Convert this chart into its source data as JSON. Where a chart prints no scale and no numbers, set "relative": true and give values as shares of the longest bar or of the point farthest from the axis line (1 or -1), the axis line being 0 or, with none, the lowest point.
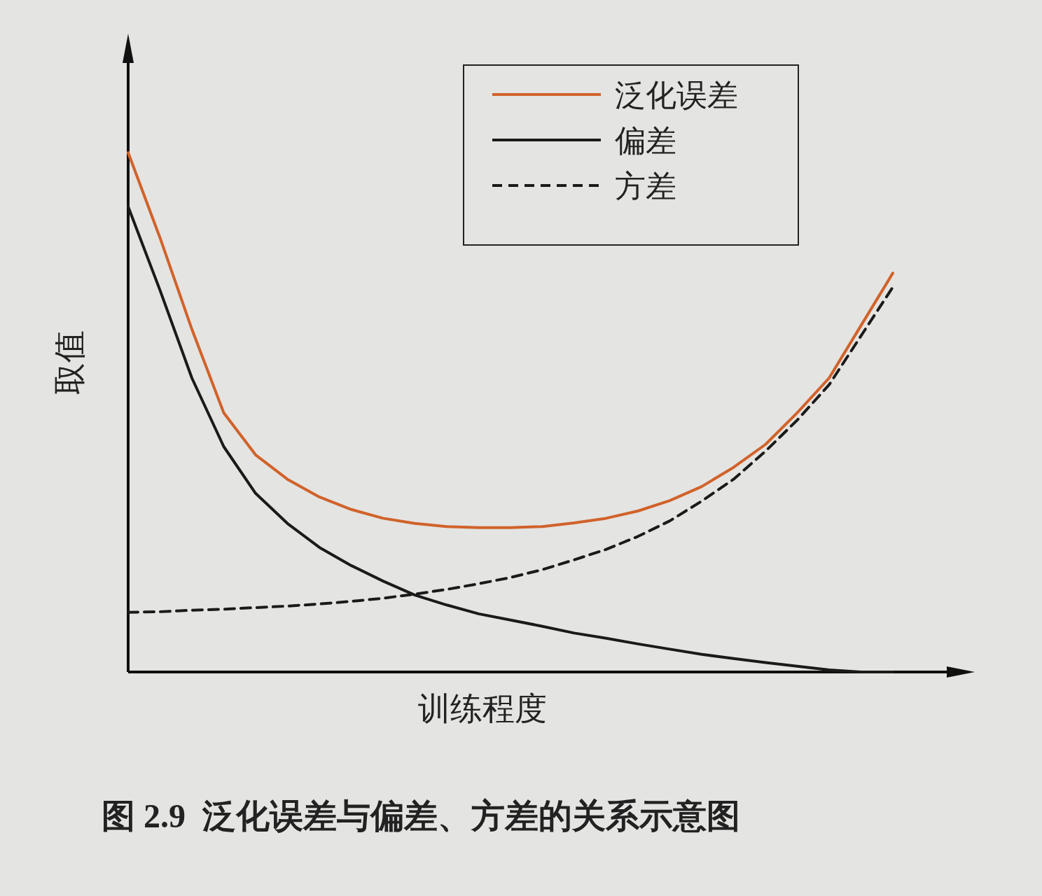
{
  "chart_data": {
    "type": "line",
    "relative": true,
    "xlabel": "训练程度",
    "ylabel": "取值",
    "legend": "top right",
    "annotations": [
      "图 2.9  泛化误差与偏差、方差的关系示意图"
    ],
    "categories": [
      null,
      null,
      null,
      null,
      null,
      null,
      null,
      null,
      null,
      null,
      null,
      null,
      null,
      null,
      null,
      null,
      null,
      null,
      null,
      null,
      null,
      null,
      null,
      null,
      null
    ],
    "series": [
      {
        "name": "泛化误差",
        "color": "#d0622a",
        "line_style": "solid",
        "values": [
          1,
          0.836,
          0.66,
          0.499,
          0.418,
          0.371,
          0.337,
          0.313,
          0.296,
          0.286,
          0.28,
          0.278,
          0.278,
          0.28,
          0.287,
          0.296,
          0.31,
          0.33,
          0.357,
          0.394,
          0.438,
          0.499,
          0.566,
          0.667,
          0.768
        ]
      },
      {
        "name": "偏差",
        "color": "#1a1a1a",
        "line_style": "solid",
        "values": [
          0.896,
          0.735,
          0.566,
          0.434,
          0.344,
          0.286,
          0.24,
          0.205,
          0.175,
          0.148,
          0.129,
          0.112,
          0.1,
          0.088,
          0.075,
          0.065,
          0.054,
          0.044,
          0.034,
          0.026,
          0.018,
          0.011,
          0.004,
          0,
          0
        ]
      },
      {
        "name": "方差",
        "color": "#1a1a1a",
        "line_style": "dashed",
        "values": [
          0.115,
          0.116,
          0.119,
          0.121,
          0.124,
          0.127,
          0.131,
          0.136,
          0.142,
          0.15,
          0.159,
          0.17,
          0.182,
          0.197,
          0.216,
          0.236,
          0.261,
          0.291,
          0.329,
          0.371,
          0.425,
          0.485,
          0.553,
          0.647,
          0.741
        ]
      }
    ]
  }
}
